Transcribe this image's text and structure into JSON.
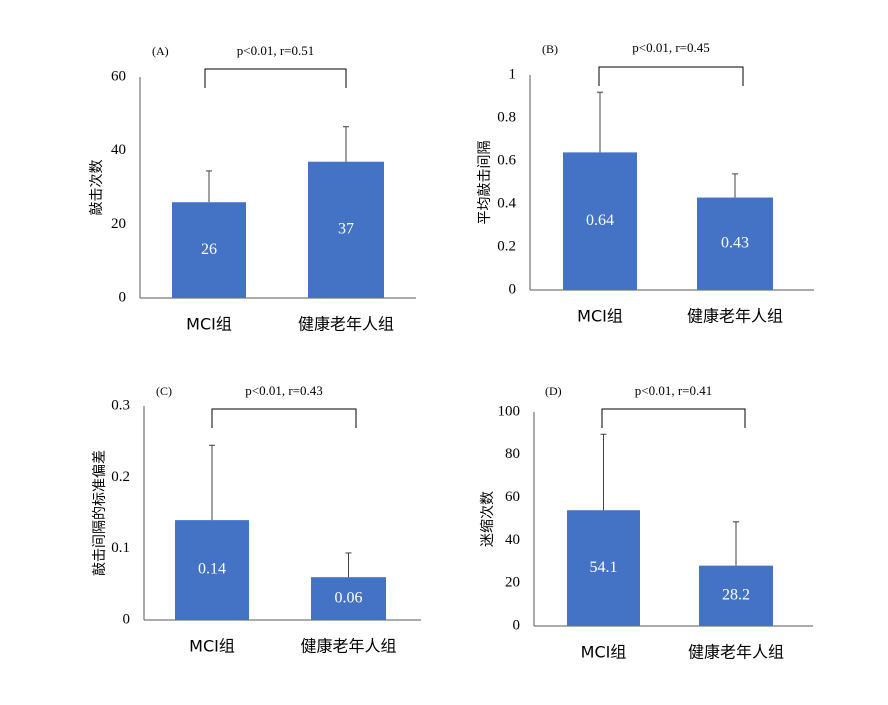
{
  "colors": {
    "bar": "#4472C4",
    "axis": "#000000",
    "errorbar": "#404040"
  },
  "chart_data": [
    {
      "type": "bar",
      "panel_label": "(A)",
      "annotation": "p<0.01, r=0.51",
      "ylabel": "敲击次数",
      "categories": [
        "MCI组",
        "健康老年人组"
      ],
      "values": [
        26,
        37
      ],
      "value_labels": [
        "26",
        "37"
      ],
      "error_plus": [
        8.5,
        9.5
      ],
      "ylim": [
        0,
        60
      ],
      "yticks": [
        0,
        20,
        40,
        60
      ],
      "ytick_labels": [
        "0",
        "20",
        "40",
        "60"
      ]
    },
    {
      "type": "bar",
      "panel_label": "(B)",
      "annotation": "p<0.01, r=0.45",
      "ylabel": "平均敲击间隔",
      "categories": [
        "MCI组",
        "健康老年人组"
      ],
      "values": [
        0.64,
        0.43
      ],
      "value_labels": [
        "0.64",
        "0.43"
      ],
      "error_plus": [
        0.28,
        0.11
      ],
      "ylim": [
        0,
        1
      ],
      "yticks": [
        0,
        0.2,
        0.4,
        0.6,
        0.8,
        1
      ],
      "ytick_labels": [
        "0",
        "0.2",
        "0.4",
        "0.6",
        "0.8",
        "1"
      ]
    },
    {
      "type": "bar",
      "panel_label": "(C)",
      "annotation": "p<0.01, r=0.43",
      "ylabel": "敲击间隔的标准偏差",
      "categories": [
        "MCI组",
        "健康老年人组"
      ],
      "values": [
        0.14,
        0.06
      ],
      "value_labels": [
        "0.14",
        "0.06"
      ],
      "error_plus": [
        0.105,
        0.034
      ],
      "ylim": [
        0,
        0.3
      ],
      "yticks": [
        0,
        0.1,
        0.2,
        0.3
      ],
      "ytick_labels": [
        "0",
        "0.1",
        "0.2",
        "0.3"
      ]
    },
    {
      "type": "bar",
      "panel_label": "(D)",
      "annotation": "p<0.01, r=0.41",
      "ylabel": "迷缩次数",
      "categories": [
        "MCI组",
        "健康老年人组"
      ],
      "values": [
        54.1,
        28.2
      ],
      "value_labels": [
        "54.1",
        "28.2"
      ],
      "error_plus": [
        35.5,
        20.5
      ],
      "ylim": [
        0,
        100
      ],
      "yticks": [
        0,
        20,
        40,
        60,
        80,
        100
      ],
      "ytick_labels": [
        "0",
        "20",
        "40",
        "60",
        "80",
        "100"
      ]
    }
  ]
}
